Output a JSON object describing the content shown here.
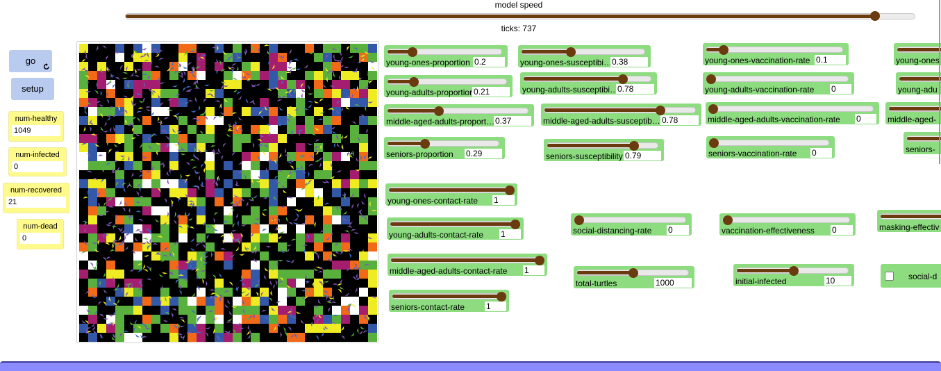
{
  "speed_slider": {
    "label": "model speed"
  },
  "ticks": {
    "label": "ticks:",
    "value": 737
  },
  "buttons": [
    {
      "label": "go"
    },
    {
      "label": "setup"
    }
  ],
  "monitors": [
    {
      "label": "num-healthy",
      "value": 1049
    },
    {
      "label": "num-infected",
      "value": 0
    },
    {
      "label": "num-recovered",
      "value": 21
    },
    {
      "label": "num-dead",
      "value": 0
    }
  ],
  "sliders": [
    {
      "label": "young-ones-proportion",
      "value": 0.2
    },
    {
      "label": "young-ones-susceptibi…",
      "value": 0.38
    },
    {
      "label": "young-ones-vaccination-rate",
      "value": 0.1
    },
    {
      "label": "young-ones"
    },
    {
      "label": "young-adults-proportion",
      "value": 0.21
    },
    {
      "label": "young-adults-susceptibi…",
      "value": 0.78
    },
    {
      "label": "young-adults-vaccination-rate",
      "value": 0
    },
    {
      "label": "young-adu"
    },
    {
      "label": "middle-aged-adults-proport…",
      "value": 0.37
    },
    {
      "label": "middle-aged-adults-susceptib…",
      "value": 0.78
    },
    {
      "label": "middle-aged-adults-vaccination-rate",
      "value": 0
    },
    {
      "label": "middle-aged-"
    },
    {
      "label": "seniors-proportion",
      "value": 0.29
    },
    {
      "label": "seniors-susceptibility",
      "value": 0.79
    },
    {
      "label": "seniors-vaccination-rate",
      "value": 0
    },
    {
      "label": "seniors-"
    },
    {
      "label": "young-ones-contact-rate",
      "value": 1
    },
    {
      "label": "young-adults-contact-rate",
      "value": 1
    },
    {
      "label": "social-distancing-rate",
      "value": 0
    },
    {
      "label": "vaccination-effectiveness",
      "value": 0
    },
    {
      "label": "masking-effectiv"
    },
    {
      "label": "middle-aged-adults-contact-rate",
      "value": 1
    },
    {
      "label": "total-turtles",
      "value": 1000
    },
    {
      "label": "initial-infected",
      "value": 10
    },
    {
      "label": "seniors-contact-rate",
      "value": 1
    }
  ],
  "switch": {
    "label": "social-d"
  }
}
